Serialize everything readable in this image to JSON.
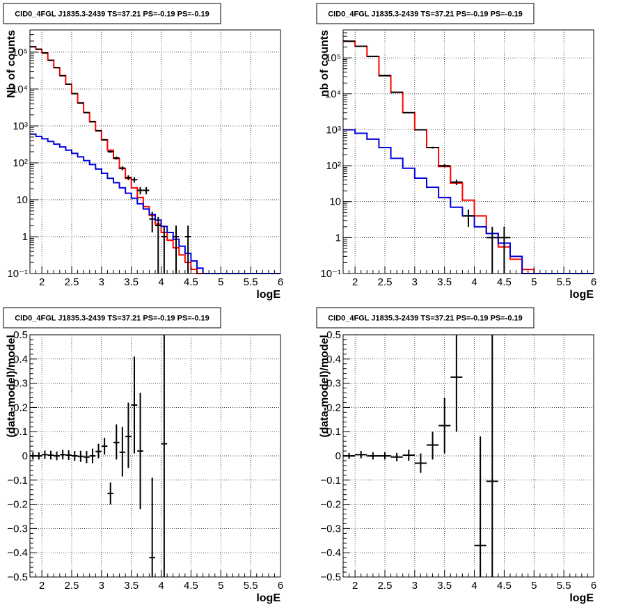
{
  "chart_data": [
    {
      "type": "line",
      "title": "CID0_4FGL J1835.3-2439 TS=37.21 PS=-0.19 PS=-0.19",
      "xlabel": "logE",
      "ylabel": "Nb of counts",
      "xlim": [
        1.8,
        6.0
      ],
      "ylim": [
        0.1,
        400000
      ],
      "yscale": "log",
      "grid": true,
      "x_ticks": [
        2,
        2.5,
        3,
        3.5,
        4,
        4.5,
        5,
        5.5,
        6
      ],
      "x_tick_labels": [
        "2",
        "2.5",
        "3",
        "3.5",
        "4",
        "4.5",
        "5",
        "5.5",
        "6"
      ],
      "y_ticks": [
        0.1,
        1,
        10,
        100,
        1000,
        10000,
        100000
      ],
      "y_tick_labels": [
        "10⁻¹",
        "1",
        "10",
        "10²",
        "10³",
        "10⁴",
        "10⁵"
      ],
      "bin_edges": [
        1.8,
        1.9,
        2.0,
        2.1,
        2.2,
        2.3,
        2.4,
        2.5,
        2.6,
        2.7,
        2.8,
        2.9,
        3.0,
        3.1,
        3.2,
        3.3,
        3.4,
        3.5,
        3.6,
        3.7,
        3.8,
        3.9,
        4.0,
        4.1,
        4.2,
        4.3,
        4.4,
        4.5,
        4.6,
        4.7,
        4.8,
        4.9,
        5.0,
        5.1,
        5.2,
        5.3,
        5.4,
        5.5,
        5.6,
        5.7,
        5.8,
        5.9,
        6.0
      ],
      "series": [
        {
          "color": "#ff0000",
          "values": [
            140000,
            120000,
            95000,
            60000,
            38000,
            23000,
            13500,
            7500,
            4200,
            2300,
            1300,
            740,
            420,
            220,
            130,
            70,
            38,
            21,
            11.5,
            6.5,
            3.8,
            2.2,
            1.3,
            0.8,
            0.5,
            0.32,
            0.2,
            0.13,
            0.1,
            0.1,
            0.1,
            0.1,
            0.1,
            0.1,
            0.1,
            0.1,
            0.1,
            0.1,
            0.1,
            0.1,
            0.1,
            0.1
          ]
        },
        {
          "color": "#0000dd",
          "values": [
            600,
            520,
            450,
            380,
            320,
            270,
            220,
            180,
            145,
            115,
            90,
            68,
            52,
            38,
            29,
            21,
            15,
            11,
            7.8,
            5.6,
            4.0,
            2.8,
            1.9,
            1.3,
            0.85,
            0.55,
            0.35,
            0.22,
            0.14,
            0.1,
            0.1,
            0.1,
            0.1,
            0.1,
            0.1,
            0.1,
            0.1,
            0.1,
            0.1,
            0.1,
            0.1,
            0.1
          ]
        }
      ],
      "points": [
        {
          "x": 1.85,
          "y": 140000,
          "xerr": 0.05,
          "ylo": 139000,
          "yhi": 141000
        },
        {
          "x": 1.95,
          "y": 120000,
          "xerr": 0.05,
          "ylo": 119000,
          "yhi": 121000
        },
        {
          "x": 2.05,
          "y": 95000,
          "xerr": 0.05,
          "ylo": 94500,
          "yhi": 95500
        },
        {
          "x": 2.15,
          "y": 60000,
          "xerr": 0.05,
          "ylo": 59700,
          "yhi": 60300
        },
        {
          "x": 2.25,
          "y": 38000,
          "xerr": 0.05,
          "ylo": 37800,
          "yhi": 38200
        },
        {
          "x": 2.35,
          "y": 23000,
          "xerr": 0.05,
          "ylo": 22850,
          "yhi": 23150
        },
        {
          "x": 2.45,
          "y": 13500,
          "xerr": 0.05,
          "ylo": 13380,
          "yhi": 13620
        },
        {
          "x": 2.55,
          "y": 7500,
          "xerr": 0.05,
          "ylo": 7410,
          "yhi": 7590
        },
        {
          "x": 2.65,
          "y": 4200,
          "xerr": 0.05,
          "ylo": 4135,
          "yhi": 4265
        },
        {
          "x": 2.75,
          "y": 2300,
          "xerr": 0.05,
          "ylo": 2250,
          "yhi": 2350
        },
        {
          "x": 2.85,
          "y": 1300,
          "xerr": 0.05,
          "ylo": 1265,
          "yhi": 1335
        },
        {
          "x": 2.95,
          "y": 740,
          "xerr": 0.05,
          "ylo": 713,
          "yhi": 767
        },
        {
          "x": 3.05,
          "y": 420,
          "xerr": 0.05,
          "ylo": 400,
          "yhi": 440
        },
        {
          "x": 3.15,
          "y": 200,
          "xerr": 0.05,
          "ylo": 186,
          "yhi": 214
        },
        {
          "x": 3.25,
          "y": 135,
          "xerr": 0.05,
          "ylo": 123,
          "yhi": 147
        },
        {
          "x": 3.35,
          "y": 72,
          "xerr": 0.05,
          "ylo": 63,
          "yhi": 81
        },
        {
          "x": 3.45,
          "y": 40,
          "xerr": 0.05,
          "ylo": 34,
          "yhi": 46
        },
        {
          "x": 3.55,
          "y": 35,
          "xerr": 0.05,
          "ylo": 29,
          "yhi": 41
        },
        {
          "x": 3.65,
          "y": 18,
          "xerr": 0.05,
          "ylo": 14,
          "yhi": 22
        },
        {
          "x": 3.75,
          "y": 18,
          "xerr": 0.05,
          "ylo": 14,
          "yhi": 22
        },
        {
          "x": 3.85,
          "y": 3,
          "xerr": 0.05,
          "ylo": 1.3,
          "yhi": 4.7
        },
        {
          "x": 3.95,
          "y": 2,
          "xerr": 0.05,
          "ylo": 0.1,
          "yhi": 3.4
        },
        {
          "x": 4.05,
          "y": 1,
          "xerr": 0.05,
          "ylo": 0.1,
          "yhi": 2
        },
        {
          "x": 4.25,
          "y": 1,
          "xerr": 0.05,
          "ylo": 0.1,
          "yhi": 2
        },
        {
          "x": 4.45,
          "y": 1,
          "xerr": 0.05,
          "ylo": 0.1,
          "yhi": 2
        }
      ]
    },
    {
      "type": "line",
      "title": "CID0_4FGL J1835.3-2439 TS=37.21 PS=-0.19 PS=-0.19",
      "xlabel": "logE",
      "ylabel": "nb of counts",
      "xlim": [
        1.8,
        6.0
      ],
      "ylim": [
        0.1,
        600000
      ],
      "yscale": "log",
      "grid": true,
      "x_ticks": [
        2,
        2.5,
        3,
        3.5,
        4,
        4.5,
        5,
        5.5,
        6
      ],
      "x_tick_labels": [
        "2",
        "2.5",
        "3",
        "3.5",
        "4",
        "4.5",
        "5",
        "5.5",
        "6"
      ],
      "y_ticks": [
        0.1,
        1,
        10,
        100,
        1000,
        10000,
        100000
      ],
      "y_tick_labels": [
        "10⁻¹",
        "1",
        "10",
        "10²",
        "10³",
        "10⁴",
        "10⁵"
      ],
      "bin_edges": [
        1.8,
        2.0,
        2.2,
        2.4,
        2.6,
        2.8,
        3.0,
        3.2,
        3.4,
        3.6,
        3.8,
        4.0,
        4.2,
        4.4,
        4.6,
        4.8,
        5.0,
        5.2,
        5.4,
        5.6,
        5.8,
        6.0
      ],
      "series": [
        {
          "color": "#ff0000",
          "values": [
            290000,
            210000,
            110000,
            32000,
            11000,
            3000,
            1000,
            320,
            95,
            33,
            11,
            4,
            1.3,
            0.55,
            0.25,
            0.13,
            0.1,
            0.1,
            0.1,
            0.1,
            0.1
          ]
        },
        {
          "color": "#0000dd",
          "values": [
            1000,
            800,
            550,
            320,
            160,
            85,
            45,
            25,
            13,
            7,
            4,
            2,
            1.3,
            0.7,
            0.3,
            0.1,
            0.1,
            0.1,
            0.1,
            0.1,
            0.1
          ]
        }
      ],
      "points": [
        {
          "x": 1.9,
          "y": 290000,
          "xerr": 0.1,
          "ylo": 289000,
          "yhi": 291000
        },
        {
          "x": 2.1,
          "y": 210000,
          "xerr": 0.1,
          "ylo": 209500,
          "yhi": 210500
        },
        {
          "x": 2.3,
          "y": 110000,
          "xerr": 0.1,
          "ylo": 109700,
          "yhi": 110300
        },
        {
          "x": 2.5,
          "y": 32000,
          "xerr": 0.1,
          "ylo": 31800,
          "yhi": 32200
        },
        {
          "x": 2.7,
          "y": 11000,
          "xerr": 0.1,
          "ylo": 10900,
          "yhi": 11100
        },
        {
          "x": 2.9,
          "y": 3000,
          "xerr": 0.1,
          "ylo": 2950,
          "yhi": 3050
        },
        {
          "x": 3.1,
          "y": 1000,
          "xerr": 0.1,
          "ylo": 970,
          "yhi": 1030
        },
        {
          "x": 3.3,
          "y": 320,
          "xerr": 0.1,
          "ylo": 302,
          "yhi": 338
        },
        {
          "x": 3.5,
          "y": 100,
          "xerr": 0.1,
          "ylo": 90,
          "yhi": 110
        },
        {
          "x": 3.7,
          "y": 35,
          "xerr": 0.1,
          "ylo": 29,
          "yhi": 41
        },
        {
          "x": 3.9,
          "y": 4,
          "xerr": 0.1,
          "ylo": 2,
          "yhi": 6
        },
        {
          "x": 4.3,
          "y": 1,
          "xerr": 0.1,
          "ylo": 0.1,
          "yhi": 2
        },
        {
          "x": 4.5,
          "y": 1,
          "xerr": 0.1,
          "ylo": 0.1,
          "yhi": 2
        }
      ]
    },
    {
      "type": "scatter",
      "title": "CID0_4FGL J1835.3-2439 TS=37.21 PS=-0.19 PS=-0.19",
      "xlabel": "logE",
      "ylabel": "(data-model)/model",
      "xlim": [
        1.8,
        6.0
      ],
      "ylim": [
        -0.5,
        0.5
      ],
      "grid": true,
      "x_ticks": [
        2,
        2.5,
        3,
        3.5,
        4,
        4.5,
        5,
        5.5,
        6
      ],
      "x_tick_labels": [
        "2",
        "2.5",
        "3",
        "3.5",
        "4",
        "4.5",
        "5",
        "5.5",
        "6"
      ],
      "y_ticks": [
        -0.5,
        -0.4,
        -0.3,
        -0.2,
        -0.1,
        0,
        0.1,
        0.2,
        0.3,
        0.4,
        0.5
      ],
      "y_tick_labels": [
        "−0.5",
        "−0.4",
        "−0.3",
        "−0.2",
        "−0.1",
        "0",
        "0.1",
        "0.2",
        "0.3",
        "0.4",
        "0.5"
      ],
      "points": [
        {
          "x": 1.85,
          "y": 0.0,
          "xerr": 0.05,
          "ylo": -0.015,
          "yhi": 0.015
        },
        {
          "x": 1.95,
          "y": 0.0,
          "xerr": 0.05,
          "ylo": -0.015,
          "yhi": 0.015
        },
        {
          "x": 2.05,
          "y": 0.005,
          "xerr": 0.05,
          "ylo": -0.012,
          "yhi": 0.022
        },
        {
          "x": 2.15,
          "y": 0.003,
          "xerr": 0.05,
          "ylo": -0.015,
          "yhi": 0.021
        },
        {
          "x": 2.25,
          "y": 0.0,
          "xerr": 0.05,
          "ylo": -0.018,
          "yhi": 0.018
        },
        {
          "x": 2.35,
          "y": 0.005,
          "xerr": 0.05,
          "ylo": -0.015,
          "yhi": 0.025
        },
        {
          "x": 2.45,
          "y": 0.003,
          "xerr": 0.05,
          "ylo": -0.017,
          "yhi": 0.023
        },
        {
          "x": 2.55,
          "y": 0.0,
          "xerr": 0.05,
          "ylo": -0.02,
          "yhi": 0.02
        },
        {
          "x": 2.65,
          "y": -0.002,
          "xerr": 0.05,
          "ylo": -0.025,
          "yhi": 0.021
        },
        {
          "x": 2.75,
          "y": -0.005,
          "xerr": 0.05,
          "ylo": -0.03,
          "yhi": 0.02
        },
        {
          "x": 2.85,
          "y": 0.0,
          "xerr": 0.05,
          "ylo": -0.03,
          "yhi": 0.03
        },
        {
          "x": 2.95,
          "y": 0.018,
          "xerr": 0.05,
          "ylo": -0.01,
          "yhi": 0.05
        },
        {
          "x": 3.05,
          "y": 0.04,
          "xerr": 0.05,
          "ylo": 0.005,
          "yhi": 0.075
        },
        {
          "x": 3.15,
          "y": -0.155,
          "xerr": 0.05,
          "ylo": -0.2,
          "yhi": -0.11
        },
        {
          "x": 3.25,
          "y": 0.055,
          "xerr": 0.05,
          "ylo": -0.015,
          "yhi": 0.13
        },
        {
          "x": 3.35,
          "y": 0.015,
          "xerr": 0.05,
          "ylo": -0.085,
          "yhi": 0.12
        },
        {
          "x": 3.45,
          "y": 0.08,
          "xerr": 0.05,
          "ylo": -0.05,
          "yhi": 0.22
        },
        {
          "x": 3.55,
          "y": 0.21,
          "xerr": 0.05,
          "ylo": 0.01,
          "yhi": 0.41
        },
        {
          "x": 3.65,
          "y": 0.02,
          "xerr": 0.05,
          "ylo": -0.22,
          "yhi": 0.26
        },
        {
          "x": 3.85,
          "y": -0.42,
          "xerr": 0.05,
          "ylo": -0.5,
          "yhi": -0.09
        },
        {
          "x": 4.05,
          "y": 0.05,
          "xerr": 0.05,
          "ylo": -0.5,
          "yhi": 0.5
        }
      ]
    },
    {
      "type": "scatter",
      "title": "CID0_4FGL J1835.3-2439 TS=37.21 PS=-0.19 PS=-0.19",
      "xlabel": "logE",
      "ylabel": "(data-model)/model",
      "xlim": [
        1.8,
        6.0
      ],
      "ylim": [
        -0.5,
        0.5
      ],
      "grid": true,
      "x_ticks": [
        2,
        2.5,
        3,
        3.5,
        4,
        4.5,
        5,
        5.5,
        6
      ],
      "x_tick_labels": [
        "2",
        "2.5",
        "3",
        "3.5",
        "4",
        "4.5",
        "5",
        "5.5",
        "6"
      ],
      "y_ticks": [
        -0.5,
        -0.4,
        -0.3,
        -0.2,
        -0.1,
        0,
        0.1,
        0.2,
        0.3,
        0.4,
        0.5
      ],
      "y_tick_labels": [
        "−0.5",
        "−0.4",
        "−0.3",
        "−0.2",
        "−0.1",
        "0",
        "0.1",
        "0.2",
        "0.3",
        "0.4",
        "0.5"
      ],
      "points": [
        {
          "x": 1.9,
          "y": 0.0,
          "xerr": 0.1,
          "ylo": -0.012,
          "yhi": 0.012
        },
        {
          "x": 2.1,
          "y": 0.005,
          "xerr": 0.1,
          "ylo": -0.01,
          "yhi": 0.02
        },
        {
          "x": 2.3,
          "y": 0.0,
          "xerr": 0.1,
          "ylo": -0.015,
          "yhi": 0.015
        },
        {
          "x": 2.5,
          "y": 0.0,
          "xerr": 0.1,
          "ylo": -0.015,
          "yhi": 0.015
        },
        {
          "x": 2.7,
          "y": -0.005,
          "xerr": 0.1,
          "ylo": -0.022,
          "yhi": 0.012
        },
        {
          "x": 2.9,
          "y": 0.003,
          "xerr": 0.1,
          "ylo": -0.02,
          "yhi": 0.026
        },
        {
          "x": 3.1,
          "y": -0.03,
          "xerr": 0.1,
          "ylo": -0.07,
          "yhi": 0.01
        },
        {
          "x": 3.3,
          "y": 0.045,
          "xerr": 0.1,
          "ylo": -0.015,
          "yhi": 0.1
        },
        {
          "x": 3.5,
          "y": 0.125,
          "xerr": 0.1,
          "ylo": 0.01,
          "yhi": 0.24
        },
        {
          "x": 3.7,
          "y": 0.325,
          "xerr": 0.1,
          "ylo": 0.1,
          "yhi": 0.5
        },
        {
          "x": 4.1,
          "y": -0.37,
          "xerr": 0.1,
          "ylo": -0.5,
          "yhi": 0.08
        },
        {
          "x": 4.3,
          "y": -0.105,
          "xerr": 0.1,
          "ylo": -0.5,
          "yhi": 0.5
        }
      ]
    }
  ]
}
